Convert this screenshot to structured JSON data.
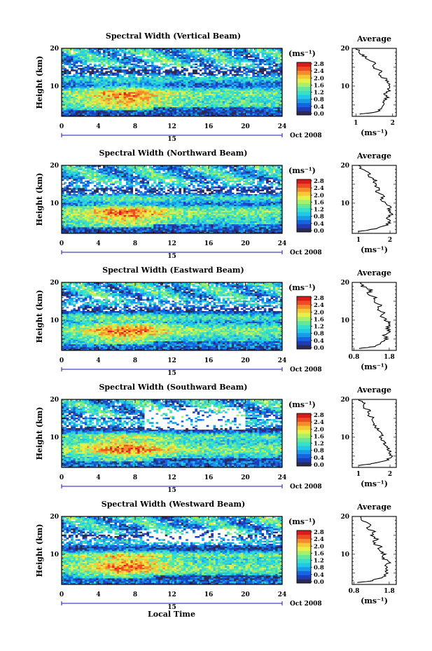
{
  "figure": {
    "xlabel": "Local Time",
    "date_label": "Oct 2008",
    "day_label": "15"
  },
  "colors": {
    "scale": [
      "#2b2b55",
      "#1f3cb8",
      "#1565e0",
      "#1a9be8",
      "#22c8e8",
      "#37e0c8",
      "#66e89a",
      "#a8ef6a",
      "#e6f048",
      "#f6c838",
      "#f48c2c",
      "#ee4c24",
      "#d81c1c"
    ]
  },
  "chart_data": [
    {
      "type": "heatmap",
      "title": "Spectral Width (Vertical Beam)",
      "ylabel": "Height (km)",
      "xlim": [
        0,
        24
      ],
      "ylim": [
        2,
        20
      ],
      "xticks": [
        0,
        4,
        8,
        12,
        16,
        20,
        24
      ],
      "yticks": [
        10,
        20
      ],
      "colorbar": {
        "unit": "(ms⁻¹)",
        "ticks": [
          "2.8",
          "2.4",
          "2.0",
          "1.6",
          "1.2",
          "0.8",
          "0.4",
          "0.0"
        ],
        "range": [
          0,
          3.0
        ]
      },
      "profile": {
        "title": "Average",
        "xlabel": "(ms⁻¹)",
        "xlim": [
          0.9,
          2.1
        ],
        "xticks": [
          1,
          2
        ],
        "xtick_labels": [
          "1",
          "2"
        ],
        "yticks": [
          10,
          20
        ],
        "heights": [
          2.5,
          3,
          4,
          5,
          6,
          7,
          8,
          9,
          10,
          11,
          12,
          13,
          14,
          15,
          16,
          17,
          18,
          19,
          20
        ],
        "values": [
          1.05,
          1.5,
          1.72,
          1.8,
          1.75,
          1.85,
          1.82,
          1.9,
          1.95,
          1.85,
          1.8,
          1.62,
          1.7,
          1.45,
          1.5,
          1.35,
          1.2,
          1.08,
          1.0
        ]
      }
    },
    {
      "type": "heatmap",
      "title": "Spectral Width (Northward Beam)",
      "ylabel": "Height (km)",
      "xlim": [
        0,
        24
      ],
      "ylim": [
        2,
        20
      ],
      "xticks": [
        0,
        4,
        8,
        12,
        16,
        20,
        24
      ],
      "yticks": [
        10,
        20
      ],
      "colorbar": {
        "unit": "(ms⁻¹)",
        "ticks": [
          "2.8",
          "2.4",
          "2.0",
          "1.6",
          "1.2",
          "0.8",
          "0.4",
          "0.0"
        ],
        "range": [
          0,
          3.0
        ]
      },
      "profile": {
        "title": "Average",
        "xlabel": "(ms⁻¹)",
        "xlim": [
          0.8,
          2.2
        ],
        "xticks": [
          1,
          2
        ],
        "xtick_labels": [
          "1",
          "2"
        ],
        "yticks": [
          10,
          20
        ],
        "heights": [
          2.5,
          3,
          4,
          5,
          6,
          7,
          8,
          9,
          10,
          11,
          12,
          13,
          14,
          15,
          16,
          17,
          18,
          19,
          20
        ],
        "values": [
          1.0,
          1.4,
          1.85,
          2.0,
          1.9,
          2.05,
          1.95,
          2.0,
          1.85,
          1.75,
          1.8,
          1.6,
          1.65,
          1.5,
          1.55,
          1.3,
          1.35,
          1.1,
          1.0
        ]
      }
    },
    {
      "type": "heatmap",
      "title": "Spectral Width (Eastward Beam)",
      "ylabel": "Height (km)",
      "xlim": [
        0,
        24
      ],
      "ylim": [
        2,
        20
      ],
      "xticks": [
        0,
        4,
        8,
        12,
        16,
        20,
        24
      ],
      "yticks": [
        10,
        20
      ],
      "colorbar": {
        "unit": "(ms⁻¹)",
        "ticks": [
          "2.8",
          "2.4",
          "2.0",
          "1.6",
          "1.2",
          "0.8",
          "0.4",
          "0.0"
        ],
        "range": [
          0,
          3.0
        ]
      },
      "profile": {
        "title": "Average",
        "xlabel": "(ms⁻¹)",
        "xlim": [
          0.75,
          2.0
        ],
        "xticks": [
          0.8,
          1.8
        ],
        "xtick_labels": [
          "0.8",
          "1.8"
        ],
        "yticks": [
          10,
          20
        ],
        "heights": [
          2.5,
          3,
          4,
          5,
          6,
          7,
          8,
          9,
          10,
          11,
          12,
          13,
          14,
          15,
          16,
          17,
          18,
          19,
          20
        ],
        "values": [
          0.95,
          1.35,
          1.6,
          1.75,
          1.65,
          1.8,
          1.75,
          1.85,
          1.7,
          1.6,
          1.65,
          1.45,
          1.55,
          1.35,
          1.4,
          1.2,
          1.3,
          1.05,
          1.0
        ]
      }
    },
    {
      "type": "heatmap",
      "title": "Spectral Width (Southward Beam)",
      "ylabel": "Height (km)",
      "xlim": [
        0,
        24
      ],
      "ylim": [
        2,
        20
      ],
      "xticks": [
        0,
        4,
        8,
        12,
        16,
        20,
        24
      ],
      "yticks": [
        10,
        20
      ],
      "colorbar": {
        "unit": "(ms⁻¹)",
        "ticks": [
          "2.8",
          "2.4",
          "2.0",
          "1.6",
          "1.2",
          "0.8",
          "0.4",
          "0.0"
        ],
        "range": [
          0,
          3.0
        ]
      },
      "profile": {
        "title": "Average",
        "xlabel": "(ms⁻¹)",
        "xlim": [
          0.8,
          2.2
        ],
        "xticks": [
          1,
          2
        ],
        "xtick_labels": [
          "1",
          "2"
        ],
        "yticks": [
          10,
          20
        ],
        "heights": [
          2.5,
          3,
          4,
          5,
          6,
          7,
          8,
          9,
          10,
          11,
          12,
          13,
          14,
          15,
          16,
          17,
          18,
          19,
          20
        ],
        "values": [
          1.05,
          1.45,
          1.9,
          2.05,
          2.0,
          1.95,
          1.85,
          1.8,
          1.7,
          1.75,
          1.6,
          1.55,
          1.45,
          1.5,
          1.3,
          1.35,
          1.15,
          1.2,
          1.0
        ]
      }
    },
    {
      "type": "heatmap",
      "title": "Spectral Width (Westward Beam)",
      "ylabel": "Height (km)",
      "xlim": [
        0,
        24
      ],
      "ylim": [
        2,
        20
      ],
      "xticks": [
        0,
        4,
        8,
        12,
        16,
        20,
        24
      ],
      "yticks": [
        10,
        20
      ],
      "colorbar": {
        "unit": "(ms⁻¹)",
        "ticks": [
          "2.8",
          "2.4",
          "2.0",
          "1.6",
          "1.2",
          "0.8",
          "0.4",
          "0.0"
        ],
        "range": [
          0,
          3.0
        ]
      },
      "profile": {
        "title": "Average",
        "xlabel": "(ms⁻¹)",
        "xlim": [
          0.75,
          2.0
        ],
        "xticks": [
          0.8,
          1.8
        ],
        "xtick_labels": [
          "0.8",
          "1.8"
        ],
        "yticks": [
          10,
          20
        ],
        "heights": [
          2.5,
          3,
          4,
          5,
          6,
          7,
          8,
          9,
          10,
          11,
          12,
          13,
          14,
          15,
          16,
          17,
          18,
          19,
          20
        ],
        "values": [
          0.95,
          1.3,
          1.65,
          1.75,
          1.7,
          1.72,
          1.8,
          1.6,
          1.65,
          1.5,
          1.55,
          1.35,
          1.45,
          1.3,
          1.35,
          1.15,
          1.25,
          1.05,
          1.0
        ]
      }
    }
  ]
}
